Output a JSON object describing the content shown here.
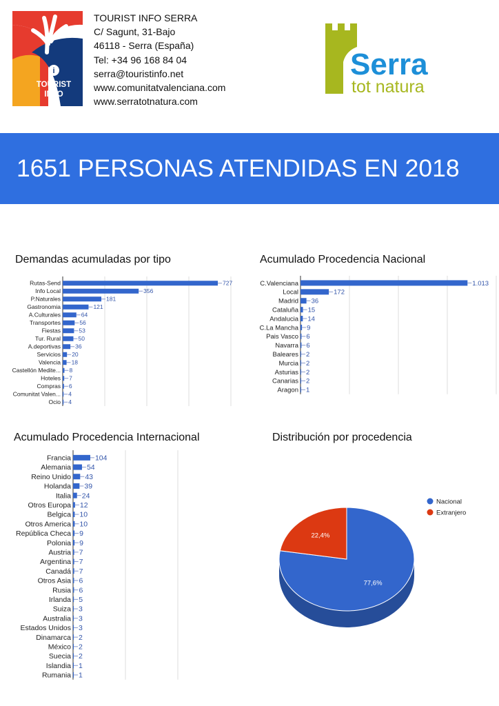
{
  "header": {
    "tourist_logo": {
      "label_line1": "TOURIST",
      "label_line2": "INFO"
    },
    "contact": {
      "name": "TOURIST INFO SERRA",
      "address": "C/ Sagunt, 31-Bajo",
      "city": "46118 - Serra (España)",
      "phone": "Tel: +34 96 168 84 04",
      "email": "serra@touristinfo.net",
      "web1": "www.comunitatvalenciana.com",
      "web2": "www.serratotnatura.com"
    },
    "serra_logo": {
      "word": "Serra",
      "tagline": "tot natura"
    }
  },
  "banner": {
    "title": "1651 PERSONAS ATENDIDAS EN 2018"
  },
  "colors": {
    "banner_blue": "#2f6fe0",
    "bar_blue": "#3366cc",
    "pie_red": "#dc3912",
    "serra_olive": "#a7b71f",
    "serra_blue": "#1d8fd8",
    "tourist_red": "#e63b2e",
    "tourist_navy": "#133a7c"
  },
  "chart_data": [
    {
      "type": "bar",
      "orientation": "horizontal",
      "title": "Demandas acumuladas por tipo",
      "categories": [
        "Rutas-Send",
        "Info Local",
        "P.Naturales",
        "Gastronomia",
        "A.Culturales",
        "Transportes",
        "Fiestas",
        "Tur. Rural",
        "A.deportivas",
        "Servicios",
        "Valencia",
        "Castellón Medite...",
        "Hoteles",
        "Compras",
        "Comunitat Valen...",
        "Ocio"
      ],
      "values": [
        727,
        356,
        181,
        121,
        64,
        56,
        53,
        50,
        36,
        20,
        18,
        8,
        7,
        6,
        4,
        4
      ],
      "value_labels": [
        "727",
        "356",
        "181",
        "121",
        "64",
        "56",
        "53",
        "50",
        "36",
        "20",
        "18",
        "8",
        "7",
        "6",
        "4",
        "4"
      ],
      "grid": true
    },
    {
      "type": "bar",
      "orientation": "horizontal",
      "title": "Acumulado Procedencia Nacional",
      "categories": [
        "C.Valenciana",
        "Local",
        "Madrid",
        "Cataluña",
        "Andalucia",
        "C.La Mancha",
        "Pais Vasco",
        "Navarra",
        "Baleares",
        "Murcia",
        "Asturias",
        "Canarias",
        "Aragon"
      ],
      "values": [
        1013,
        172,
        36,
        15,
        14,
        9,
        6,
        6,
        2,
        2,
        2,
        2,
        1
      ],
      "value_labels": [
        "1.013",
        "172",
        "36",
        "15",
        "14",
        "9",
        "6",
        "6",
        "2",
        "2",
        "2",
        "2",
        "1"
      ],
      "grid": true
    },
    {
      "type": "bar",
      "orientation": "horizontal",
      "title": "Acumulado Procedencia Internacional",
      "categories": [
        "Francia",
        "Alemania",
        "Reino Unido",
        "Holanda",
        "Italia",
        "Otros Europa",
        "Belgica",
        "Otros America",
        "República Checa",
        "Polonia",
        "Austria",
        "Argentina",
        "Canadá",
        "Otros Asia",
        "Rusia",
        "Irlanda",
        "Suiza",
        "Australia",
        "Estados Unidos",
        "Dinamarca",
        "México",
        "Suecia",
        "Islandia",
        "Rumania"
      ],
      "values": [
        104,
        54,
        43,
        39,
        24,
        12,
        10,
        10,
        9,
        9,
        7,
        7,
        7,
        6,
        6,
        5,
        3,
        3,
        3,
        2,
        2,
        2,
        1,
        1
      ],
      "value_labels": [
        "104",
        "54",
        "43",
        "39",
        "24",
        "12",
        "10",
        "10",
        "9",
        "9",
        "7",
        "7",
        "7",
        "6",
        "6",
        "5",
        "3",
        "3",
        "3",
        "2",
        "2",
        "2",
        "1",
        "1"
      ],
      "grid": true
    },
    {
      "type": "pie",
      "title": "Distribución por procedencia",
      "categories": [
        "Nacional",
        "Extranjero"
      ],
      "values": [
        77.6,
        22.4
      ],
      "value_labels": [
        "77,6%",
        "22,4%"
      ],
      "colors": [
        "#3366cc",
        "#dc3912"
      ],
      "legend": "right"
    }
  ]
}
